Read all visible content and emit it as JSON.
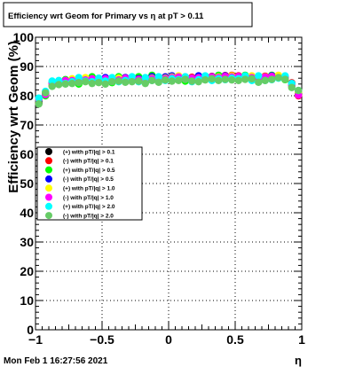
{
  "title": "Efficiency wrt Geom for Primary vs   η at pT > 0.11",
  "footer_datetime": "Mon Feb  1 16:27:56 2021",
  "chart_data": {
    "type": "scatter",
    "title": "Efficiency wrt Geom for Primary vs   η at pT > 0.11",
    "xlabel": "η",
    "ylabel": "Efficiency wrt Geom (%)",
    "xlim": [
      -1,
      1
    ],
    "ylim": [
      0,
      100
    ],
    "x_ticks": [
      -1,
      -0.5,
      0,
      0.5,
      1
    ],
    "x_tick_labels": [
      "−1",
      "−0.5",
      "0",
      "0.5",
      "1"
    ],
    "y_ticks": [
      0,
      10,
      20,
      30,
      40,
      50,
      60,
      70,
      80,
      90,
      100
    ],
    "y_tick_labels": [
      "0",
      "10",
      "20",
      "30",
      "40",
      "50",
      "60",
      "70",
      "80",
      "90",
      "100"
    ],
    "grid": true,
    "legend_position": "middle-left",
    "x": [
      -0.975,
      -0.925,
      -0.875,
      -0.825,
      -0.775,
      -0.725,
      -0.675,
      -0.625,
      -0.575,
      -0.525,
      -0.475,
      -0.425,
      -0.375,
      -0.325,
      -0.275,
      -0.225,
      -0.175,
      -0.125,
      -0.075,
      -0.025,
      0.025,
      0.075,
      0.125,
      0.175,
      0.225,
      0.275,
      0.325,
      0.375,
      0.425,
      0.475,
      0.525,
      0.575,
      0.625,
      0.675,
      0.725,
      0.775,
      0.825,
      0.875,
      0.925,
      0.975
    ],
    "series": [
      {
        "name": "(+) with pT/|q| > 0.1",
        "color": "#000000",
        "values": [
          77.5,
          80.5,
          83.5,
          84.5,
          84.8,
          85.0,
          85.2,
          85.5,
          85.6,
          85.3,
          85.2,
          85.4,
          85.6,
          85.8,
          85.7,
          85.5,
          85.4,
          85.6,
          85.8,
          86.0,
          86.1,
          86.2,
          86.0,
          85.9,
          85.8,
          86.0,
          86.2,
          86.3,
          86.5,
          86.6,
          86.4,
          86.2,
          86.0,
          86.1,
          86.3,
          86.5,
          86.4,
          86.0,
          84.0,
          80.5
        ]
      },
      {
        "name": "(-) with pT/|q| > 0.1",
        "color": "#ff0000",
        "values": [
          77.9,
          80.9,
          83.9,
          84.9,
          85.2,
          85.4,
          85.6,
          85.9,
          86.0,
          85.7,
          85.6,
          85.8,
          86.0,
          86.2,
          86.1,
          85.9,
          85.8,
          86.0,
          86.2,
          86.4,
          86.5,
          86.6,
          86.4,
          86.3,
          86.2,
          86.4,
          86.6,
          86.7,
          86.9,
          87.0,
          86.8,
          86.6,
          86.4,
          86.5,
          86.7,
          86.9,
          86.8,
          86.4,
          84.4,
          80.0
        ]
      },
      {
        "name": "(+) with pT/|q| > 0.5",
        "color": "#00ff00",
        "values": [
          78.2,
          80.0,
          84.5,
          84.0,
          85.5,
          84.5,
          84.0,
          86.0,
          86.5,
          85.0,
          86.0,
          84.5,
          86.5,
          86.0,
          85.0,
          86.5,
          84.5,
          87.0,
          85.5,
          86.0,
          86.5,
          86.0,
          85.0,
          86.0,
          86.5,
          85.5,
          86.0,
          87.0,
          86.0,
          86.5,
          85.5,
          87.0,
          86.5,
          85.0,
          86.0,
          87.0,
          86.5,
          85.5,
          83.5,
          81.0
        ]
      },
      {
        "name": "(-) with pT/|q| > 0.5",
        "color": "#0000ff",
        "values": [
          78.5,
          80.8,
          84.0,
          84.2,
          85.0,
          85.5,
          85.0,
          85.8,
          85.2,
          85.5,
          86.2,
          85.0,
          85.8,
          86.2,
          85.5,
          85.8,
          85.2,
          86.5,
          85.8,
          86.4,
          86.8,
          86.3,
          85.8,
          85.5,
          86.8,
          86.2,
          86.5,
          86.0,
          86.8,
          86.3,
          86.0,
          86.5,
          85.8,
          86.3,
          86.0,
          86.8,
          86.5,
          86.0,
          84.0,
          81.5
        ]
      },
      {
        "name": "(+) with pT/|q| > 1.0",
        "color": "#ffff00",
        "values": [
          78.8,
          81.2,
          83.8,
          85.0,
          84.5,
          85.8,
          84.8,
          86.2,
          85.5,
          84.8,
          85.5,
          85.8,
          86.0,
          85.5,
          86.2,
          85.2,
          85.8,
          86.0,
          85.2,
          86.0,
          86.4,
          86.8,
          86.2,
          85.2,
          86.0,
          86.5,
          85.8,
          86.4,
          86.2,
          86.8,
          86.2,
          85.8,
          86.8,
          85.8,
          86.5,
          86.2,
          87.0,
          85.8,
          83.8,
          81.2
        ]
      },
      {
        "name": "(-) with pT/|q| > 1.0",
        "color": "#ff00ff",
        "values": [
          79.0,
          80.4,
          84.2,
          84.6,
          85.2,
          85.2,
          85.6,
          85.4,
          85.8,
          85.2,
          85.8,
          85.6,
          85.4,
          86.0,
          85.8,
          85.6,
          86.0,
          85.8,
          86.0,
          85.8,
          86.2,
          86.4,
          86.0,
          86.0,
          86.2,
          86.0,
          86.4,
          86.2,
          86.6,
          86.4,
          86.6,
          86.4,
          86.2,
          86.0,
          86.4,
          86.6,
          86.2,
          86.2,
          83.6,
          80.2
        ]
      },
      {
        "name": "(+) with pT/|q| > 2.0",
        "color": "#00ffff",
        "values": [
          79.2,
          81.5,
          85.0,
          85.2,
          84.2,
          84.8,
          86.2,
          85.0,
          84.8,
          86.0,
          85.0,
          86.2,
          84.8,
          85.2,
          86.5,
          84.8,
          86.2,
          85.2,
          86.5,
          85.2,
          85.8,
          85.5,
          86.5,
          84.8,
          85.5,
          86.8,
          85.2,
          85.8,
          85.5,
          86.0,
          85.8,
          86.8,
          85.2,
          86.8,
          85.2,
          85.5,
          86.0,
          86.8,
          84.2,
          81.8
        ]
      },
      {
        "name": "(-) with pT/|q| > 2.0",
        "color": "#66cc66",
        "values": [
          77.2,
          81.0,
          83.2,
          83.8,
          84.0,
          84.2,
          84.5,
          84.8,
          84.2,
          84.5,
          84.0,
          84.8,
          85.0,
          84.6,
          84.8,
          85.0,
          84.2,
          85.2,
          84.6,
          85.4,
          85.0,
          85.2,
          85.6,
          85.0,
          84.8,
          85.4,
          85.8,
          85.2,
          85.6,
          85.4,
          85.2,
          85.6,
          85.8,
          84.6,
          85.2,
          85.6,
          86.2,
          85.6,
          82.8,
          81.8
        ]
      }
    ]
  }
}
